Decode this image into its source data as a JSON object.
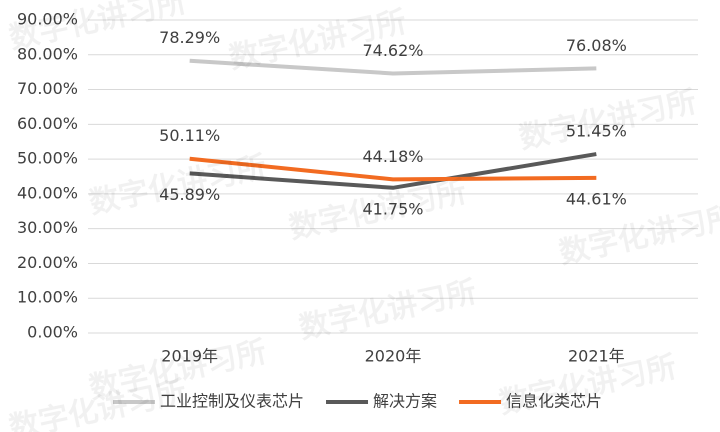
{
  "chart_data": {
    "type": "line",
    "categories": [
      "2019年",
      "2020年",
      "2021年"
    ],
    "series": [
      {
        "name": "工业控制及仪表芯片",
        "color": "#c8c8c8",
        "values": [
          78.29,
          74.62,
          76.08
        ],
        "value_labels": [
          "78.29%",
          "74.62%",
          "76.08%"
        ]
      },
      {
        "name": "解决方案",
        "color": "#595959",
        "values": [
          45.89,
          41.75,
          51.45
        ],
        "value_labels": [
          "45.89%",
          "41.75%",
          "51.45%"
        ]
      },
      {
        "name": "信息化类芯片",
        "color": "#f26b21",
        "values": [
          50.11,
          44.18,
          44.61
        ],
        "value_labels": [
          "50.11%",
          "44.18%",
          "44.61%"
        ]
      }
    ],
    "ylim": [
      0,
      90
    ],
    "yticks": [
      {
        "value": 0,
        "label": "0.00%"
      },
      {
        "value": 10,
        "label": "10.00%"
      },
      {
        "value": 20,
        "label": "20.00%"
      },
      {
        "value": 30,
        "label": "30.00%"
      },
      {
        "value": 40,
        "label": "40.00%"
      },
      {
        "value": 50,
        "label": "50.00%"
      },
      {
        "value": 60,
        "label": "60.00%"
      },
      {
        "value": 70,
        "label": "70.00%"
      },
      {
        "value": 80,
        "label": "80.00%"
      },
      {
        "value": 90,
        "label": "90.00%"
      }
    ],
    "grid": true,
    "legend": "bottom",
    "watermark": "数字化讲习所"
  }
}
